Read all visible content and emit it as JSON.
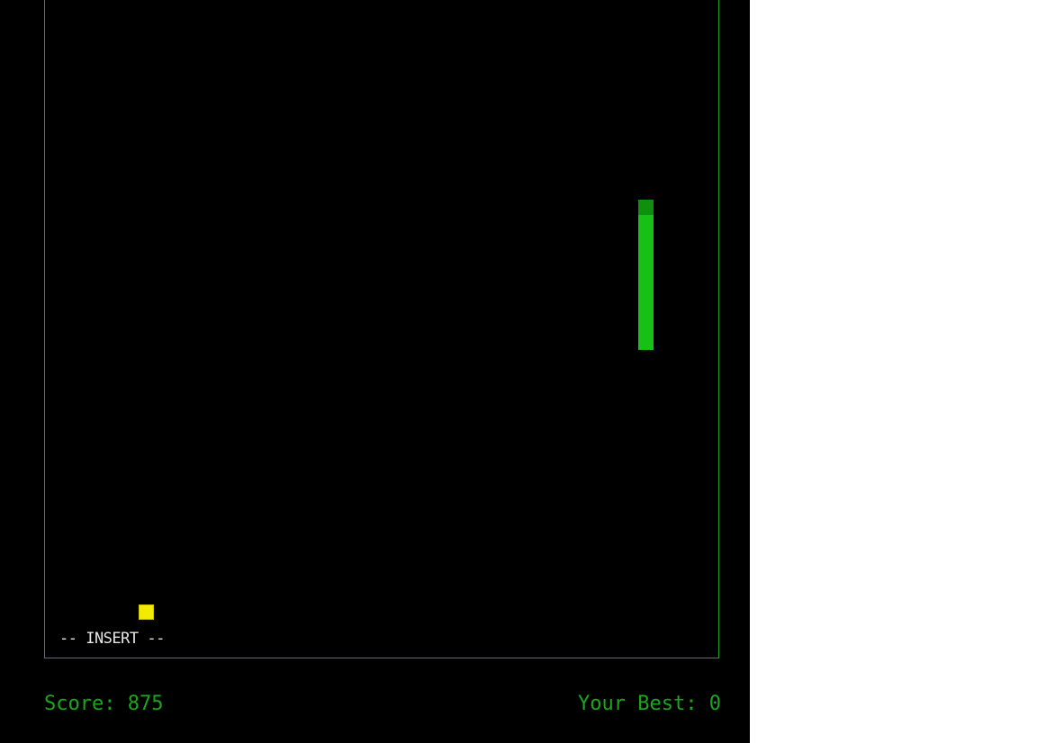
{
  "game": {
    "mode_label": "-- INSERT --",
    "snake_length": 10
  },
  "hud": {
    "score_text": "Score: 875",
    "best_text": "Your Best: 0"
  },
  "colors": {
    "background": "#000000",
    "border": "#1f9e1f",
    "snake_body": "#16c016",
    "snake_head": "#0e8f0e",
    "food": "#f2ea00",
    "hud_text": "#1aa81a",
    "mode_text": "#e6e6e6"
  }
}
